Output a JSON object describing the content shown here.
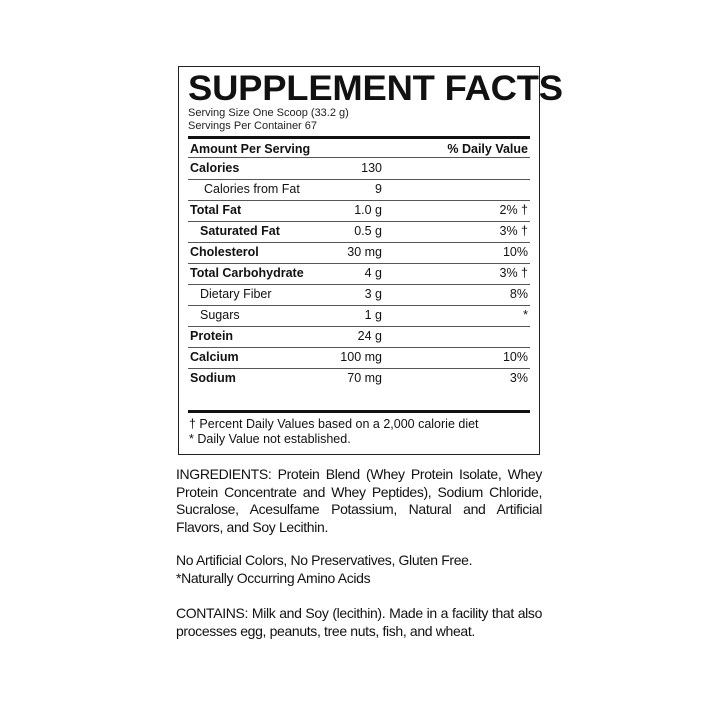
{
  "label": {
    "title": "SUPPLEMENT FACTS",
    "serving_size": "Serving Size One Scoop (33.2 g)",
    "servings_per_container": "Servings Per Container 67",
    "header_amount": "Amount Per Serving",
    "header_dv": "% Daily Value",
    "rows": [
      {
        "name": "Calories",
        "amount": "130",
        "dv": "",
        "bold": true,
        "indent": 0
      },
      {
        "name": "Calories from Fat",
        "amount": "9",
        "dv": "",
        "bold": false,
        "indent": 2
      },
      {
        "name": "Total Fat",
        "amount": "1.0 g",
        "dv": "2% †",
        "bold": true,
        "indent": 0
      },
      {
        "name": "Saturated Fat",
        "amount": "0.5 g",
        "dv": "3% †",
        "bold": true,
        "indent": 1
      },
      {
        "name": "Cholesterol",
        "amount": "30 mg",
        "dv": "10%",
        "bold": true,
        "indent": 0
      },
      {
        "name": "Total Carbohydrate",
        "amount": "4 g",
        "dv": "3% †",
        "bold": true,
        "indent": 0
      },
      {
        "name": "Dietary Fiber",
        "amount": "3 g",
        "dv": "8%",
        "bold": false,
        "indent": 1
      },
      {
        "name": "Sugars",
        "amount": "1 g",
        "dv": "*",
        "bold": false,
        "indent": 1
      },
      {
        "name": "Protein",
        "amount": "24 g",
        "dv": "",
        "bold": true,
        "indent": 0
      },
      {
        "name": "Calcium",
        "amount": "100 mg",
        "dv": "10%",
        "bold": true,
        "indent": 0
      },
      {
        "name": "Sodium",
        "amount": "70 mg",
        "dv": "3%",
        "bold": true,
        "indent": 0
      }
    ],
    "footnote1": "† Percent Daily Values based on a 2,000 calorie diet",
    "footnote2": "* Daily Value not established."
  },
  "ingredients": "INGREDIENTS: Protein Blend (Whey Protein Isolate, Whey Protein Concentrate and Whey Peptides), Sodium Chloride, Sucralose, Acesulfame Potassium, Natural and Artificial Flavors, and Soy Lecithin.",
  "claims_line1": "No Artificial Colors, No Preservatives, Gluten Free.",
  "claims_line2": "*Naturally Occurring Amino Acids",
  "contains": "CONTAINS: Milk and Soy (lecithin). Made in a facility that also processes egg, peanuts, tree nuts, fish, and wheat."
}
